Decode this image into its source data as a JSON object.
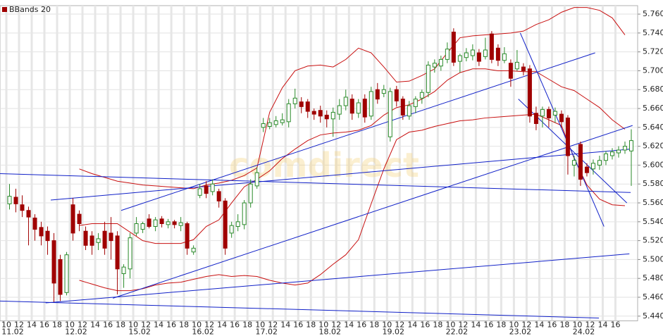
{
  "chart_data": {
    "type": "candlestick",
    "legend_label": "BBands 20",
    "watermark": "comdirect",
    "up_color": "#2a8a2a",
    "down_color": "#a00000",
    "xlim": [
      -1.5,
      99
    ],
    "ylim": [
      5.435,
      5.769
    ],
    "grid": true,
    "yticks": [
      {
        "value": 5.44,
        "label": "5.440"
      },
      {
        "value": 5.46,
        "label": "5.460"
      },
      {
        "value": 5.48,
        "label": "5.480"
      },
      {
        "value": 5.5,
        "label": "5.500"
      },
      {
        "value": 5.52,
        "label": "5.520"
      },
      {
        "value": 5.54,
        "label": "5.540"
      },
      {
        "value": 5.56,
        "label": "5.560"
      },
      {
        "value": 5.58,
        "label": "5.580"
      },
      {
        "value": 5.6,
        "label": "5.600"
      },
      {
        "value": 5.62,
        "label": "5.620"
      },
      {
        "value": 5.64,
        "label": "5.640"
      },
      {
        "value": 5.66,
        "label": "5.660"
      },
      {
        "value": 5.68,
        "label": "5.680"
      },
      {
        "value": 5.7,
        "label": "5.700"
      },
      {
        "value": 5.72,
        "label": "5.720"
      },
      {
        "value": 5.74,
        "label": "5.740"
      },
      {
        "value": 5.76,
        "label": "5.760"
      }
    ],
    "xticks": [
      {
        "value": -0.5,
        "label": "10"
      },
      {
        "value": 1.5,
        "label": "12"
      },
      {
        "value": 3.5,
        "label": "14"
      },
      {
        "value": 5.5,
        "label": "16"
      },
      {
        "value": 7.5,
        "label": "18"
      },
      {
        "value": 9.5,
        "label": "10"
      },
      {
        "value": 11.5,
        "label": "12"
      },
      {
        "value": 13.5,
        "label": "14"
      },
      {
        "value": 15.5,
        "label": "16"
      },
      {
        "value": 17.5,
        "label": "18"
      },
      {
        "value": 19.5,
        "label": "10"
      },
      {
        "value": 21.5,
        "label": "12"
      },
      {
        "value": 23.5,
        "label": "14"
      },
      {
        "value": 25.5,
        "label": "16"
      },
      {
        "value": 27.5,
        "label": "18"
      },
      {
        "value": 29.5,
        "label": "10"
      },
      {
        "value": 31.5,
        "label": "12"
      },
      {
        "value": 33.5,
        "label": "14"
      },
      {
        "value": 35.5,
        "label": "16"
      },
      {
        "value": 37.5,
        "label": "18"
      },
      {
        "value": 39.5,
        "label": "10"
      },
      {
        "value": 41.5,
        "label": "12"
      },
      {
        "value": 43.5,
        "label": "14"
      },
      {
        "value": 45.5,
        "label": "16"
      },
      {
        "value": 47.5,
        "label": "18"
      },
      {
        "value": 49.5,
        "label": "10"
      },
      {
        "value": 51.5,
        "label": "12"
      },
      {
        "value": 53.5,
        "label": "14"
      },
      {
        "value": 55.5,
        "label": "16"
      },
      {
        "value": 57.5,
        "label": "18"
      },
      {
        "value": 59.5,
        "label": "10"
      },
      {
        "value": 61.5,
        "label": "12"
      },
      {
        "value": 63.5,
        "label": "14"
      },
      {
        "value": 65.5,
        "label": "16"
      },
      {
        "value": 67.5,
        "label": "18"
      },
      {
        "value": 69.5,
        "label": "10"
      },
      {
        "value": 71.5,
        "label": "12"
      },
      {
        "value": 73.5,
        "label": "14"
      },
      {
        "value": 75.5,
        "label": "16"
      },
      {
        "value": 77.5,
        "label": "18"
      },
      {
        "value": 79.5,
        "label": "10"
      },
      {
        "value": 81.5,
        "label": "12"
      },
      {
        "value": 83.5,
        "label": "14"
      },
      {
        "value": 85.5,
        "label": "16"
      },
      {
        "value": 87.5,
        "label": "18"
      },
      {
        "value": 89.5,
        "label": "10"
      },
      {
        "value": 91.5,
        "label": "12"
      },
      {
        "value": 93.5,
        "label": "14"
      },
      {
        "value": 95.5,
        "label": "16"
      }
    ],
    "date_ticks": [
      {
        "value": 0.5,
        "label": "11.02"
      },
      {
        "value": 10.5,
        "label": "12.02"
      },
      {
        "value": 20.5,
        "label": "15.02"
      },
      {
        "value": 30.5,
        "label": "16.02"
      },
      {
        "value": 40.5,
        "label": "17.02"
      },
      {
        "value": 50.5,
        "label": "18.02"
      },
      {
        "value": 60.5,
        "label": "19.02"
      },
      {
        "value": 70.5,
        "label": "22.02"
      },
      {
        "value": 80.5,
        "label": "23.02"
      },
      {
        "value": 90.5,
        "label": "24.02"
      }
    ],
    "open": [
      5.559,
      5.566,
      5.558,
      5.552,
      5.544,
      5.534,
      5.53,
      5.52,
      5.5,
      5.465,
      5.558,
      5.548,
      5.53,
      5.525,
      5.518,
      5.53,
      5.528,
      5.525,
      5.485,
      5.49,
      5.528,
      5.532,
      5.543,
      5.535,
      5.543,
      5.537,
      5.54,
      5.536,
      5.538,
      5.508,
      5.568,
      5.578,
      5.572,
      5.572,
      5.562,
      5.528,
      5.535,
      5.537,
      5.56,
      5.578,
      5.64,
      5.641,
      5.643,
      5.645,
      5.646,
      5.665,
      5.667,
      5.667,
      5.657,
      5.658,
      5.653,
      5.649,
      5.654,
      5.663,
      5.67,
      5.655,
      5.67,
      5.652,
      5.68,
      5.676,
      5.63,
      5.68,
      5.67,
      5.652,
      5.662,
      5.671,
      5.677,
      5.704,
      5.705,
      5.712,
      5.741,
      5.71,
      5.714,
      5.716,
      5.719,
      5.715,
      5.739,
      5.724,
      5.711,
      5.708,
      5.702,
      5.704,
      5.702,
      5.655,
      5.652,
      5.659,
      5.653,
      5.654,
      5.65,
      5.6,
      5.622,
      5.598,
      5.596,
      5.6,
      5.605,
      5.61,
      5.613,
      5.616,
      5.615
    ],
    "high": [
      5.58,
      5.575,
      5.568,
      5.556,
      5.548,
      5.54,
      5.535,
      5.528,
      5.505,
      5.508,
      5.565,
      5.552,
      5.535,
      5.53,
      5.528,
      5.54,
      5.545,
      5.53,
      5.495,
      5.528,
      5.545,
      5.54,
      5.548,
      5.545,
      5.546,
      5.543,
      5.542,
      5.545,
      5.54,
      5.515,
      5.58,
      5.583,
      5.585,
      5.575,
      5.565,
      5.54,
      5.548,
      5.563,
      5.585,
      5.598,
      5.65,
      5.65,
      5.652,
      5.655,
      5.67,
      5.681,
      5.672,
      5.67,
      5.66,
      5.663,
      5.658,
      5.661,
      5.67,
      5.68,
      5.675,
      5.67,
      5.675,
      5.683,
      5.687,
      5.685,
      5.682,
      5.684,
      5.673,
      5.668,
      5.673,
      5.68,
      5.71,
      5.712,
      5.716,
      5.73,
      5.745,
      5.718,
      5.724,
      5.728,
      5.723,
      5.735,
      5.742,
      5.728,
      5.725,
      5.712,
      5.722,
      5.708,
      5.706,
      5.662,
      5.662,
      5.662,
      5.661,
      5.658,
      5.653,
      5.61,
      5.625,
      5.602,
      5.606,
      5.61,
      5.615,
      5.618,
      5.62,
      5.625,
      5.638
    ],
    "low": [
      5.553,
      5.55,
      5.545,
      5.515,
      5.52,
      5.515,
      5.505,
      5.455,
      5.456,
      5.462,
      5.52,
      5.53,
      5.51,
      5.505,
      5.51,
      5.505,
      5.5,
      5.463,
      5.47,
      5.48,
      5.525,
      5.528,
      5.533,
      5.53,
      5.534,
      5.533,
      5.533,
      5.53,
      5.505,
      5.505,
      5.565,
      5.565,
      5.568,
      5.555,
      5.505,
      5.523,
      5.53,
      5.532,
      5.555,
      5.575,
      5.635,
      5.638,
      5.64,
      5.642,
      5.64,
      5.66,
      5.655,
      5.65,
      5.648,
      5.645,
      5.64,
      5.63,
      5.648,
      5.658,
      5.648,
      5.65,
      5.645,
      5.648,
      5.665,
      5.672,
      5.625,
      5.662,
      5.648,
      5.648,
      5.655,
      5.665,
      5.672,
      5.698,
      5.7,
      5.708,
      5.705,
      5.698,
      5.71,
      5.711,
      5.705,
      5.712,
      5.708,
      5.705,
      5.708,
      5.683,
      5.7,
      5.695,
      5.645,
      5.637,
      5.64,
      5.64,
      5.645,
      5.64,
      5.59,
      5.588,
      5.578,
      5.588,
      5.59,
      5.595,
      5.6,
      5.606,
      5.608,
      5.612,
      5.578
    ],
    "close": [
      5.567,
      5.559,
      5.552,
      5.545,
      5.532,
      5.525,
      5.52,
      5.475,
      5.463,
      5.505,
      5.528,
      5.538,
      5.515,
      5.515,
      5.522,
      5.512,
      5.52,
      5.49,
      5.492,
      5.523,
      5.538,
      5.538,
      5.535,
      5.542,
      5.538,
      5.54,
      5.537,
      5.539,
      5.512,
      5.512,
      5.575,
      5.57,
      5.58,
      5.562,
      5.512,
      5.536,
      5.54,
      5.56,
      5.58,
      5.592,
      5.644,
      5.645,
      5.647,
      5.648,
      5.665,
      5.671,
      5.662,
      5.657,
      5.654,
      5.652,
      5.649,
      5.656,
      5.663,
      5.672,
      5.655,
      5.666,
      5.651,
      5.678,
      5.67,
      5.68,
      5.678,
      5.668,
      5.653,
      5.663,
      5.67,
      5.677,
      5.706,
      5.708,
      5.712,
      5.723,
      5.709,
      5.716,
      5.719,
      5.722,
      5.71,
      5.722,
      5.712,
      5.711,
      5.718,
      5.692,
      5.709,
      5.7,
      5.652,
      5.644,
      5.659,
      5.65,
      5.657,
      5.646,
      5.61,
      5.605,
      5.585,
      5.592,
      5.602,
      5.605,
      5.612,
      5.614,
      5.616,
      5.62,
      5.626
    ],
    "bands": {
      "color": "#c81010",
      "x": [
        11,
        13,
        15,
        17,
        19,
        21,
        23,
        25,
        27,
        29,
        31,
        33,
        35,
        37,
        39,
        41,
        43,
        45,
        47,
        49,
        51,
        53,
        55,
        57,
        59,
        61,
        63,
        65,
        67,
        69,
        71,
        73,
        75,
        77,
        79,
        81,
        83,
        85,
        87,
        89,
        91,
        93,
        95,
        97
      ],
      "upper": [
        5.596,
        5.591,
        5.587,
        5.583,
        5.581,
        5.579,
        5.578,
        5.577,
        5.576,
        5.575,
        5.579,
        5.581,
        5.584,
        5.589,
        5.597,
        5.656,
        5.682,
        5.7,
        5.705,
        5.706,
        5.704,
        5.712,
        5.724,
        5.719,
        5.704,
        5.688,
        5.689,
        5.695,
        5.702,
        5.719,
        5.735,
        5.737,
        5.738,
        5.739,
        5.74,
        5.742,
        5.749,
        5.754,
        5.762,
        5.767,
        5.767,
        5.764,
        5.756,
        5.738
      ],
      "middle": [
        5.536,
        5.538,
        5.538,
        5.538,
        5.529,
        5.52,
        5.517,
        5.517,
        5.517,
        5.521,
        5.535,
        5.542,
        5.56,
        5.577,
        5.585,
        5.594,
        5.607,
        5.617,
        5.626,
        5.632,
        5.634,
        5.635,
        5.637,
        5.642,
        5.653,
        5.661,
        5.664,
        5.67,
        5.678,
        5.69,
        5.698,
        5.702,
        5.702,
        5.7,
        5.7,
        5.699,
        5.699,
        5.691,
        5.683,
        5.679,
        5.67,
        5.661,
        5.648,
        5.638
      ],
      "lower": [
        5.478,
        5.474,
        5.47,
        5.467,
        5.467,
        5.469,
        5.473,
        5.475,
        5.476,
        5.479,
        5.482,
        5.484,
        5.482,
        5.483,
        5.482,
        5.478,
        5.475,
        5.473,
        5.475,
        5.484,
        5.495,
        5.505,
        5.521,
        5.559,
        5.596,
        5.627,
        5.635,
        5.637,
        5.641,
        5.644,
        5.647,
        5.648,
        5.65,
        5.651,
        5.652,
        5.653,
        5.654,
        5.648,
        5.642,
        5.607,
        5.579,
        5.564,
        5.558,
        5.557
      ]
    },
    "trend_line_color": "#1020c8",
    "trend_lines": [
      {
        "x": [
          -1.5,
          97.9
        ],
        "y": [
          5.591,
          5.571
        ]
      },
      {
        "x": [
          6.5,
          97.9
        ],
        "y": [
          5.563,
          5.617
        ]
      },
      {
        "x": [
          17.6,
          92.3
        ],
        "y": [
          5.552,
          5.719
        ]
      },
      {
        "x": [
          16.3,
          98.2
        ],
        "y": [
          5.459,
          5.642
        ]
      },
      {
        "x": [
          5.7,
          97.7
        ],
        "y": [
          5.454,
          5.506
        ]
      },
      {
        "x": [
          -1.5,
          92.9
        ],
        "y": [
          5.456,
          5.438
        ]
      },
      {
        "x": [
          80.5,
          93.7
        ],
        "y": [
          5.74,
          5.535
        ]
      },
      {
        "x": [
          80.2,
          97.3
        ],
        "y": [
          5.67,
          5.56
        ]
      }
    ]
  }
}
